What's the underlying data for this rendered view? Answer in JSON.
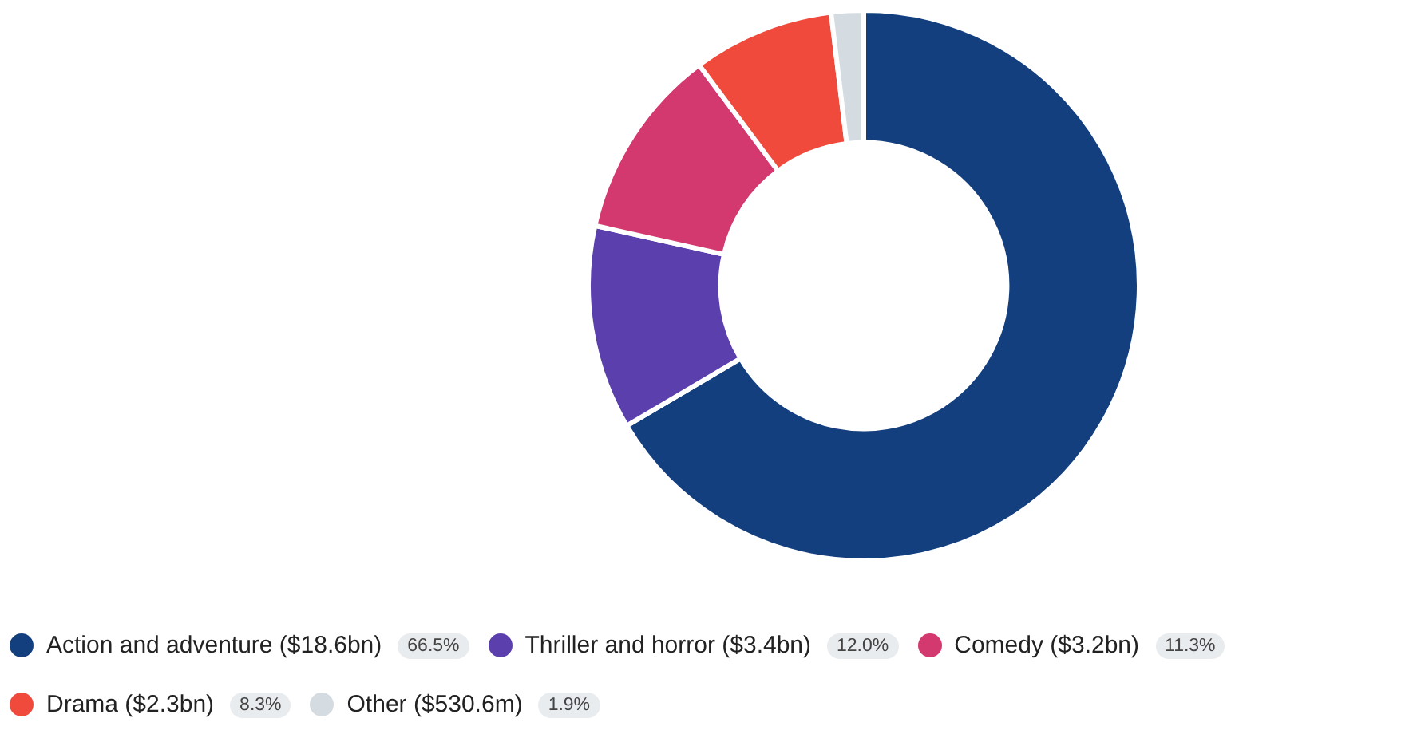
{
  "chart_data": {
    "type": "donut",
    "categories": [
      "Action and adventure ($18.6bn)",
      "Thriller and horror ($3.4bn)",
      "Comedy ($3.2bn)",
      "Drama ($2.3bn)",
      "Other ($530.6m)"
    ],
    "values": [
      66.5,
      12.0,
      11.3,
      8.3,
      1.9
    ],
    "value_labels": [
      "66.5%",
      "12.0%",
      "11.3%",
      "8.3%",
      "1.9%"
    ],
    "colors": [
      "#143f7f",
      "#5b40ad",
      "#d3386e",
      "#ef4a3b",
      "#d5dce1"
    ],
    "legend": "bottom left"
  }
}
